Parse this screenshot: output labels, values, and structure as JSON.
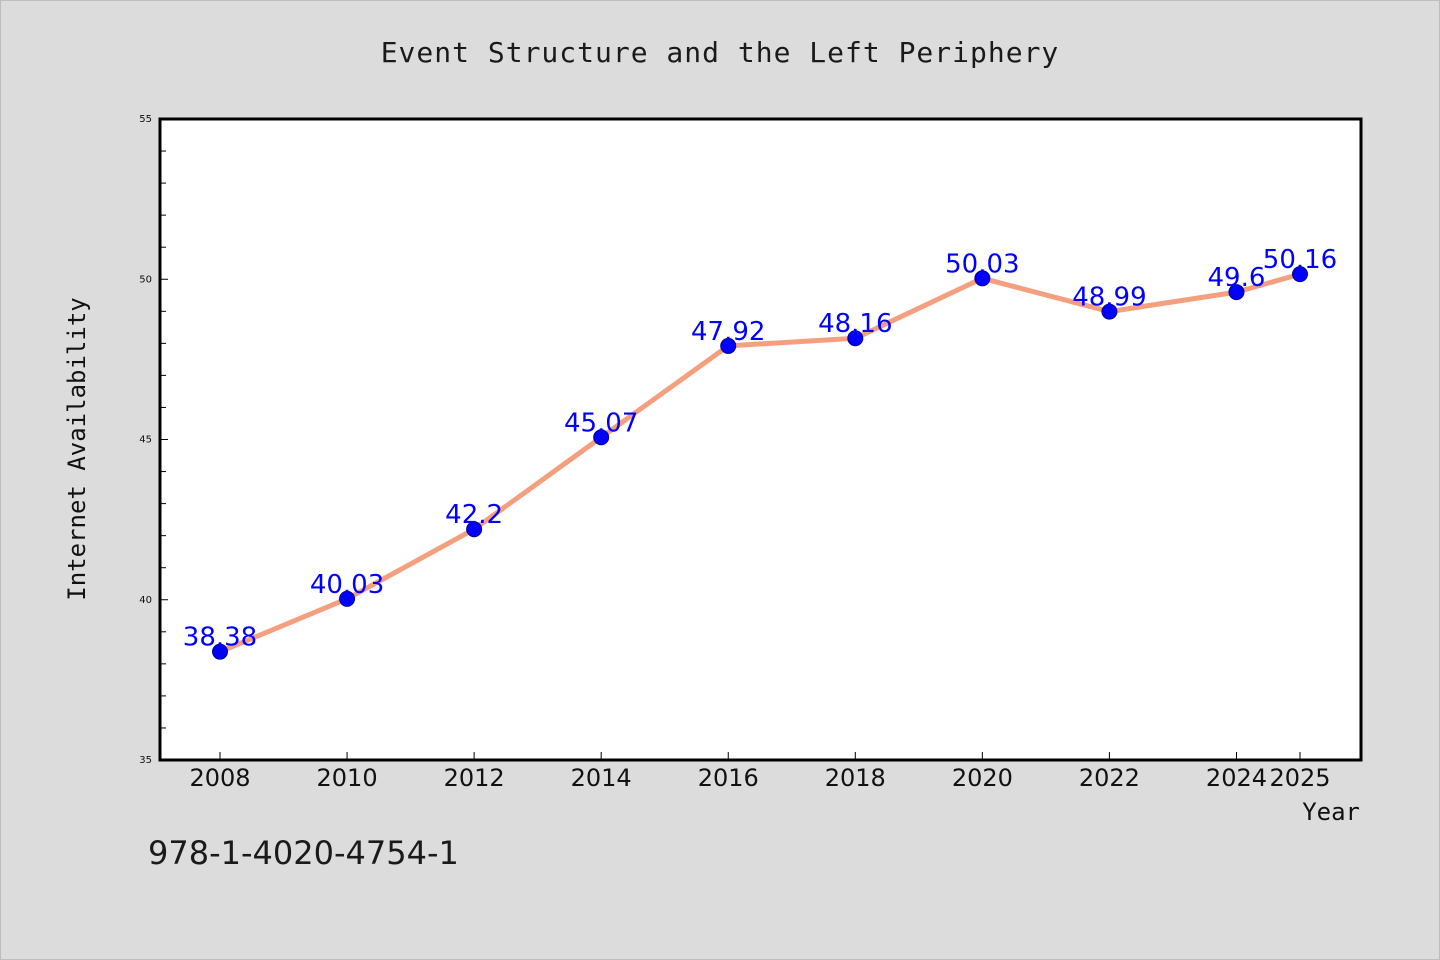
{
  "title": "Event Structure and the Left Periphery",
  "caption": "978-1-4020-4754-1",
  "chart_data": {
    "type": "line",
    "title": "Event Structure and the Left Periphery",
    "xlabel": "Year",
    "ylabel": "Internet Availability",
    "x": [
      "2008",
      "2010",
      "2012",
      "2014",
      "2016",
      "2018",
      "2020",
      "2022",
      "2024",
      "2025"
    ],
    "series": [
      {
        "values": [
          38.38,
          40.03,
          42.2,
          45.07,
          47.92,
          48.16,
          50.03,
          48.99,
          49.6,
          50.16
        ],
        "labels": [
          "38.38",
          "40.03",
          "42.2",
          "45.07",
          "47.92",
          "48.16",
          "50.03",
          "48.99",
          "49.6",
          "50.16"
        ],
        "line_color": "#f4a07e",
        "marker_color": "#0000ff"
      }
    ],
    "ylim": [
      35,
      55
    ],
    "yticks": [
      "35",
      "40",
      "45",
      "50",
      "55"
    ],
    "grid": false,
    "legend": false
  }
}
